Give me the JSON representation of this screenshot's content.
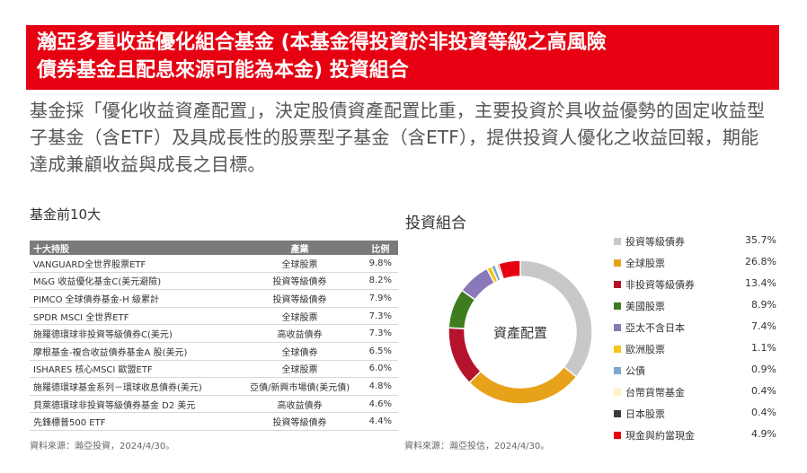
{
  "banner": {
    "title": "瀚亞多重收益優化組合基金 (本基金得投資於非投資等級之高風險\n債券基金且配息來源可能為本金) 投資組合"
  },
  "description": "基金採「優化收益資產配置」，決定股債資產配置比重，主要投資於具收益優勢的固定收益型子基金（含ETF）及具成長性的股票型子基金（含ETF），提供投資人優化之收益回報，期能達成兼顧收益與成長之目標。",
  "holdings": {
    "title": "基金前10大",
    "headers": [
      "十大持股",
      "產業",
      "比例"
    ],
    "rows": [
      {
        "name": "VANGUARD全世界股票ETF",
        "sector": "全球股票",
        "weight": "9.8%"
      },
      {
        "name": "M&G 收益優化基金C(美元避險)",
        "sector": "投資等級債券",
        "weight": "8.2%"
      },
      {
        "name": "PIMCO 全球債券基金-H 級累計",
        "sector": "投資等級債券",
        "weight": "7.9%"
      },
      {
        "name": "SPDR MSCI 全世界ETF",
        "sector": "全球股票",
        "weight": "7.3%"
      },
      {
        "name": "施羅德環球非投資等級債券C(美元)",
        "sector": "高收益債券",
        "weight": "7.3%"
      },
      {
        "name": "摩根基金-複合收益債券基金A 股(美元)",
        "sector": "全球債券",
        "weight": "6.5%"
      },
      {
        "name": "ISHARES 核心MSCI 歐盟ETF",
        "sector": "全球股票",
        "weight": "6.0%"
      },
      {
        "name": "施羅德環球基金系列－環球收息債券(美元)",
        "sector": "亞債/新興市場債(美元債)",
        "weight": "4.8%"
      },
      {
        "name": "貝萊德環球非投資等級債券基金 D2 美元",
        "sector": "高收益債券",
        "weight": "4.6%"
      },
      {
        "name": "先鋒標普500 ETF",
        "sector": "投資等級債券",
        "weight": "4.4%"
      }
    ],
    "source": "資料來源：瀚亞投資，2024/4/30。"
  },
  "allocation": {
    "title": "投資組合",
    "center_label": "資產配置",
    "source": "資料來源：瀚亞投信，2024/4/30。",
    "items": [
      {
        "label": "投資等級債券",
        "value": "35.7%",
        "pct": 35.7,
        "color": "#c8c8c8"
      },
      {
        "label": "全球股票",
        "value": "26.8%",
        "pct": 26.8,
        "color": "#e8a21a"
      },
      {
        "label": "非投資等級債券",
        "value": "13.4%",
        "pct": 13.4,
        "color": "#b5122b"
      },
      {
        "label": "美國股票",
        "value": "8.9%",
        "pct": 8.9,
        "color": "#3e7d1f"
      },
      {
        "label": "亞太不含日本",
        "value": "7.4%",
        "pct": 7.4,
        "color": "#8a78b8"
      },
      {
        "label": "歐洲股票",
        "value": "1.1%",
        "pct": 1.1,
        "color": "#f5c518"
      },
      {
        "label": "公債",
        "value": "0.9%",
        "pct": 0.9,
        "color": "#7aa9cf"
      },
      {
        "label": "台幣貨幣基金",
        "value": "0.4%",
        "pct": 0.4,
        "color": "#fff3c0"
      },
      {
        "label": "日本股票",
        "value": "0.4%",
        "pct": 0.4,
        "color": "#3b3b3b"
      },
      {
        "label": "現金與約當現金",
        "value": "4.9%",
        "pct": 4.9,
        "color": "#e60012"
      }
    ]
  }
}
